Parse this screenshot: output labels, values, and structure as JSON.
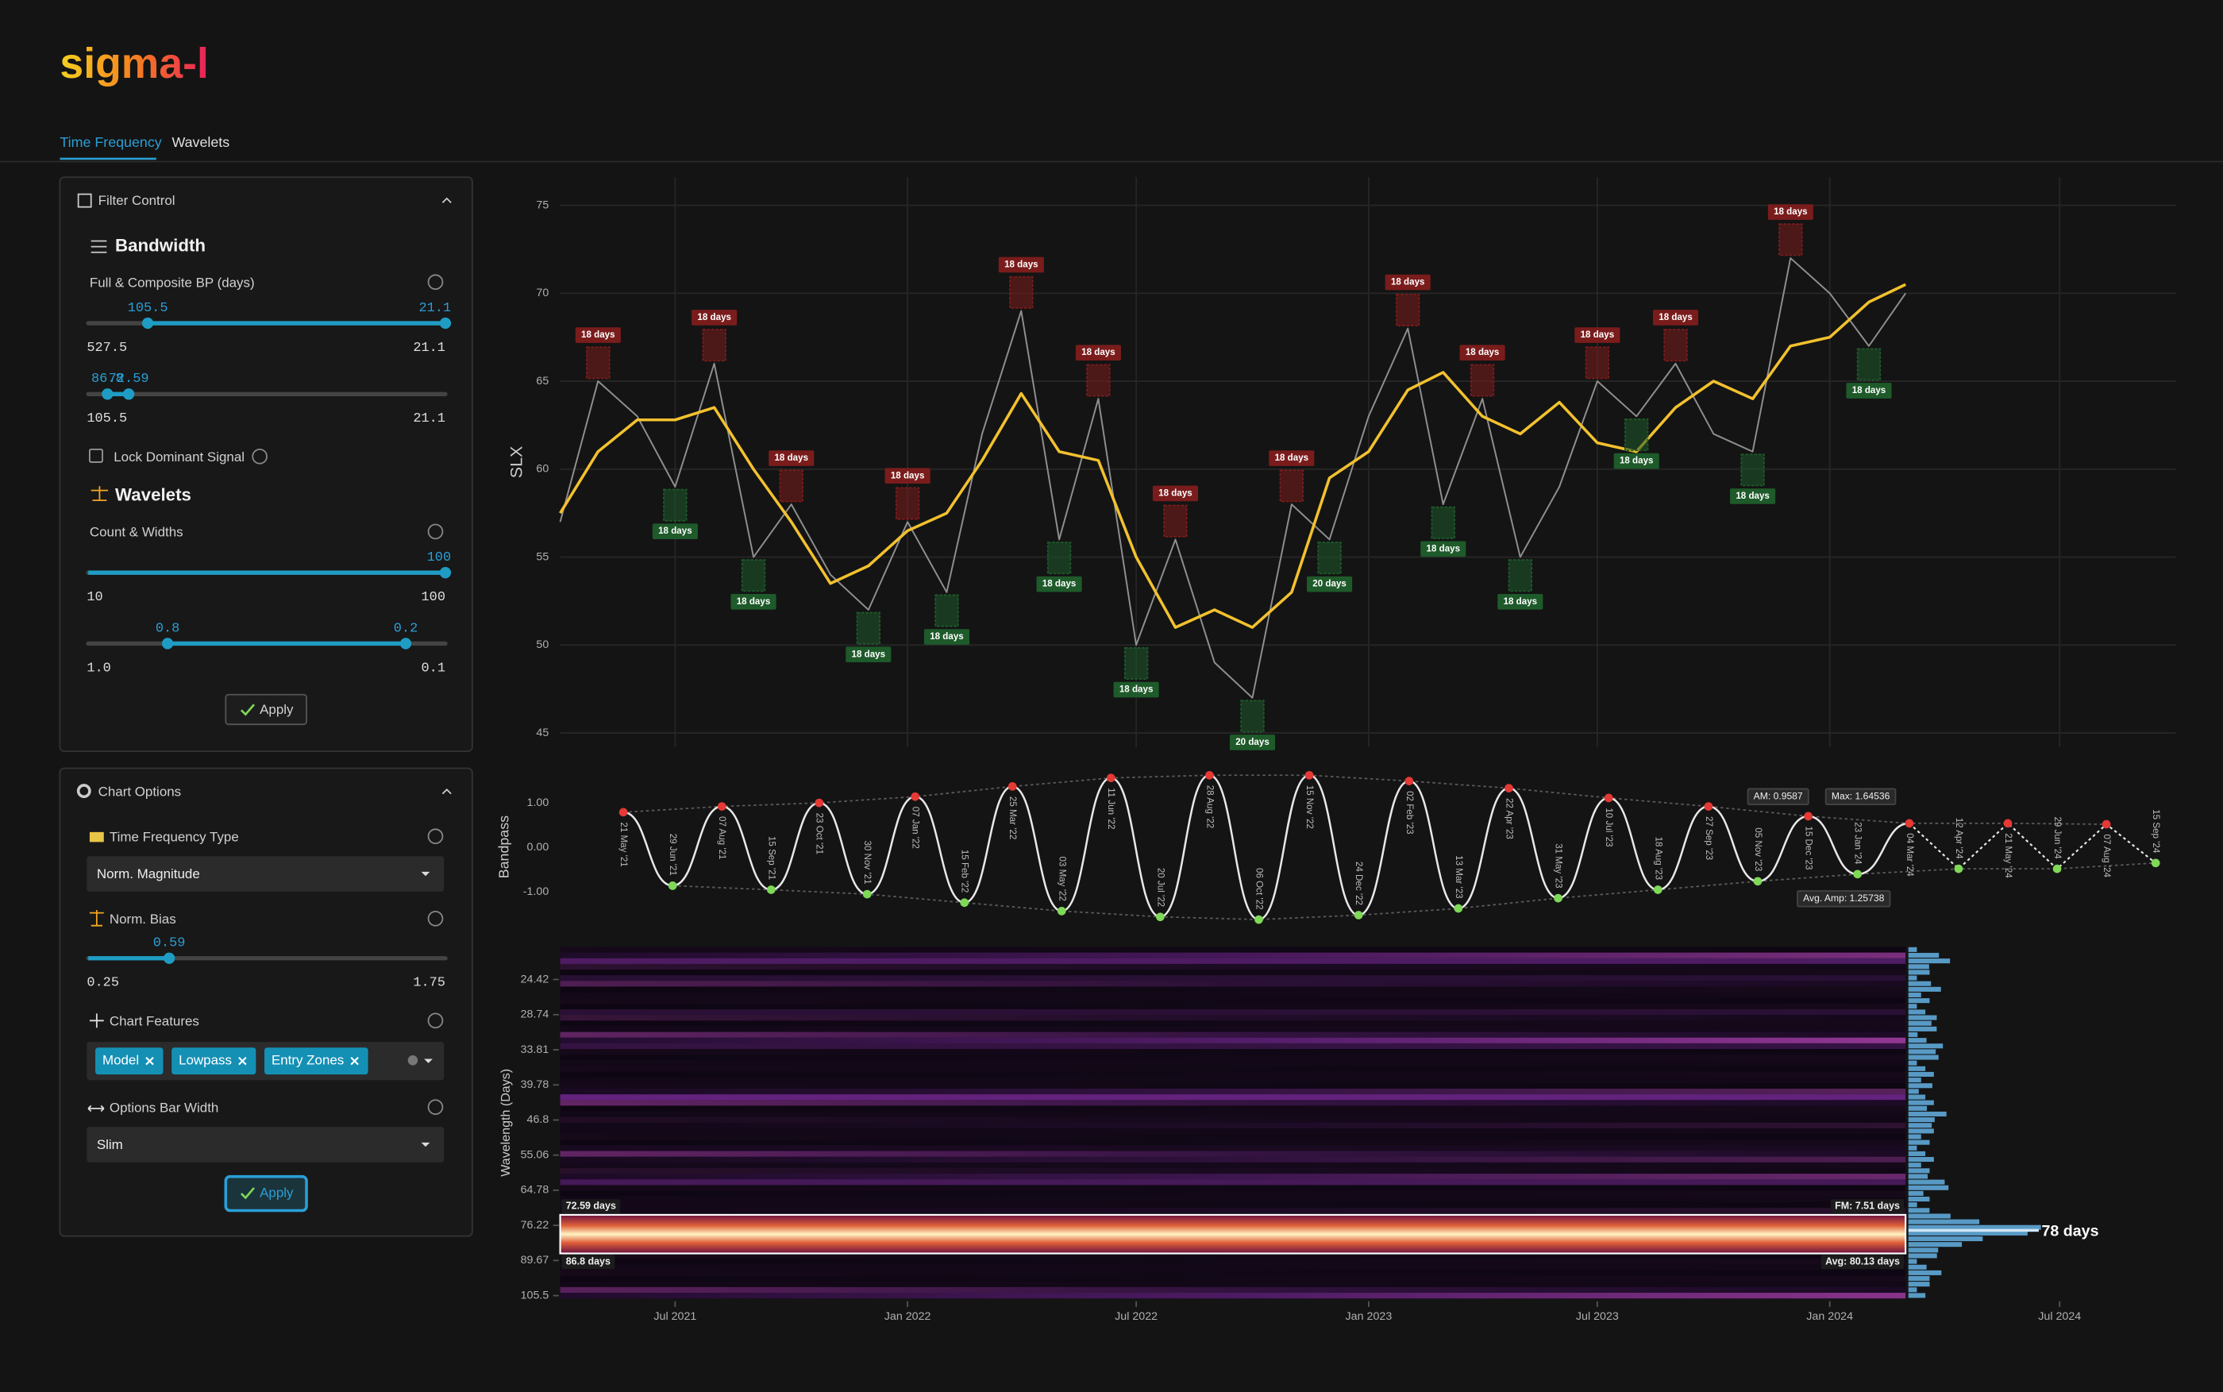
{
  "app": {
    "logo": "sigma-l",
    "tabs": [
      "Time Frequency",
      "Wavelets"
    ]
  },
  "filter_control": {
    "title": "Filter Control",
    "bandwidth_heading": "Bandwidth",
    "bp_label": "Full & Composite BP (days)",
    "sliders": [
      {
        "scale": "reciprocal",
        "ends": [
          527.5,
          21.1
        ],
        "values": [
          105.5,
          21.1
        ]
      },
      {
        "scale": "reciprocal",
        "ends": [
          105.5,
          21.1
        ],
        "values": [
          86.8,
          72.59
        ]
      }
    ],
    "lock_label": "Lock Dominant Signal",
    "wavelets_heading": "Wavelets",
    "count_label": "Count & Widths",
    "wavelet_sliders": [
      {
        "scale": "linear",
        "ends": [
          10,
          100
        ],
        "values": [
          100
        ]
      },
      {
        "scale": "linear",
        "ends": [
          {
            "value": 1.0,
            "label": "1.0"
          },
          0.1
        ],
        "values": [
          0.8,
          0.2
        ]
      }
    ],
    "apply": "Apply"
  },
  "chart_options": {
    "title": "Chart Options",
    "tf_type_label": "Time Frequency Type",
    "tf_type": "Norm. Magnitude",
    "bias_label": "Norm. Bias",
    "bias_slider": {
      "scale": "linear",
      "ends": [
        0.25,
        1.75
      ],
      "values": [
        0.59
      ]
    },
    "features_label": "Chart Features",
    "features": [
      "Model",
      "Lowpass",
      "Entry Zones"
    ],
    "bar_width_label": "Options Bar Width",
    "bar_width": "Slim",
    "apply": "Apply"
  },
  "chart_data": [
    {
      "type": "line",
      "y_label": "SLX",
      "x": [
        "2021-04",
        "2021-05",
        "2021-06",
        "2021-07",
        "2021-08",
        "2021-09",
        "2021-10",
        "2021-11",
        "2021-12",
        "2022-01",
        "2022-02",
        "2022-03",
        "2022-04",
        "2022-05",
        "2022-06",
        "2022-07",
        "2022-08",
        "2022-09",
        "2022-10",
        "2022-11",
        "2022-12",
        "2023-01",
        "2023-02",
        "2023-03",
        "2023-04",
        "2023-05",
        "2023-06",
        "2023-07",
        "2023-08",
        "2023-09",
        "2023-10",
        "2023-11",
        "2023-12",
        "2024-01",
        "2024-02",
        "2024-03"
      ],
      "series": [
        {
          "color": "#8f8f8f",
          "values": [
            57,
            65,
            63,
            59,
            66,
            55,
            58,
            54,
            52,
            57,
            53,
            62,
            69,
            56,
            64,
            50,
            56,
            49,
            47,
            58,
            56,
            63,
            68,
            58,
            64,
            55,
            59,
            65,
            63,
            66,
            62,
            61,
            72,
            70,
            67,
            70
          ]
        },
        {
          "color": "#f2c12e",
          "values": [
            57.5,
            61,
            62.8,
            62.8,
            63.5,
            60,
            57,
            53.5,
            54.5,
            56.5,
            57.5,
            60.5,
            64.3,
            61,
            60.5,
            55,
            51,
            52,
            51,
            53,
            59.5,
            61,
            64.5,
            65.5,
            63,
            62,
            63.8,
            61.5,
            61,
            63.5,
            65,
            64,
            67,
            67.5,
            69.5,
            70.5
          ]
        }
      ],
      "xlim": [
        "2021-04",
        "2024-10"
      ],
      "ylim": [
        44.2,
        76.6
      ],
      "yticks": [
        45,
        50,
        55,
        60,
        65,
        70,
        75
      ],
      "grid": true,
      "zone_colors": {
        "peak": "#7a1c1c",
        "trough": "#1e5a2a"
      },
      "entry_zones": [
        {
          "x": "2021-05",
          "kind": "peak",
          "label": "18 days"
        },
        {
          "x": "2021-08",
          "kind": "peak",
          "label": "18 days"
        },
        {
          "x": "2021-10",
          "kind": "peak",
          "label": "18 days"
        },
        {
          "x": "2022-01",
          "kind": "peak",
          "label": "18 days"
        },
        {
          "x": "2022-04",
          "kind": "peak",
          "label": "18 days"
        },
        {
          "x": "2022-06",
          "kind": "peak",
          "label": "18 days"
        },
        {
          "x": "2022-08",
          "kind": "peak",
          "label": "18 days"
        },
        {
          "x": "2022-11",
          "kind": "peak",
          "label": "18 days"
        },
        {
          "x": "2023-02",
          "kind": "peak",
          "label": "18 days"
        },
        {
          "x": "2023-04",
          "kind": "peak",
          "label": "18 days"
        },
        {
          "x": "2023-07",
          "kind": "peak",
          "label": "18 days"
        },
        {
          "x": "2023-09",
          "kind": "peak",
          "label": "18 days"
        },
        {
          "x": "2023-12",
          "kind": "peak",
          "label": "18 days"
        },
        {
          "x": "2021-07",
          "kind": "trough",
          "label": "18 days"
        },
        {
          "x": "2021-09",
          "kind": "trough",
          "label": "18 days"
        },
        {
          "x": "2021-12",
          "kind": "trough",
          "label": "18 days"
        },
        {
          "x": "2022-02",
          "kind": "trough",
          "label": "18 days"
        },
        {
          "x": "2022-05",
          "kind": "trough",
          "label": "18 days"
        },
        {
          "x": "2022-07",
          "kind": "trough",
          "label": "18 days"
        },
        {
          "x": "2022-10",
          "kind": "trough",
          "label": "20 days"
        },
        {
          "x": "2022-12",
          "kind": "trough",
          "label": "20 days"
        },
        {
          "x": "2023-03",
          "kind": "trough",
          "label": "18 days"
        },
        {
          "x": "2023-05",
          "kind": "trough",
          "label": "18 days"
        },
        {
          "x": "2023-08",
          "kind": "trough",
          "label": "18 days"
        },
        {
          "x": "2023-11",
          "kind": "trough",
          "label": "18 days"
        },
        {
          "x": "2024-02",
          "kind": "trough",
          "label": "18 days"
        }
      ]
    },
    {
      "type": "oscillator",
      "y_label": "Bandpass",
      "x": [
        "2021-05-21",
        "2021-06-29",
        "2021-08-07",
        "2021-09-15",
        "2021-10-23",
        "2021-11-30",
        "2022-01-07",
        "2022-02-15",
        "2022-03-25",
        "2022-05-03",
        "2022-06-11",
        "2022-07-20",
        "2022-08-28",
        "2022-10-06",
        "2022-11-15",
        "2022-12-24",
        "2023-02-02",
        "2023-03-13",
        "2023-04-22",
        "2023-05-31",
        "2023-07-10",
        "2023-08-18",
        "2023-09-27",
        "2023-11-05",
        "2023-12-15",
        "2024-01-23",
        "2024-03-04",
        "2024-04-12",
        "2024-05-21",
        "2024-06-29",
        "2024-08-07",
        "2024-09-15"
      ],
      "point_labels": [
        "21 May '21",
        "29 Jun '21",
        "07 Aug '21",
        "15 Sep '21",
        "23 Oct '21",
        "30 Nov '21",
        "07 Jan '22",
        "15 Feb '22",
        "25 Mar '22",
        "03 May '22",
        "11 Jun '22",
        "20 Jul '22",
        "28 Aug '22",
        "06 Oct '22",
        "15 Nov '22",
        "24 Dec '22",
        "02 Feb '23",
        "13 Mar '23",
        "22 Apr '23",
        "31 May '23",
        "10 Jul '23",
        "18 Aug '23",
        "27 Sep '23",
        "05 Nov '23",
        "15 Dec '23",
        "23 Jan '24",
        "04 Mar '24",
        "12 Apr '24",
        "21 May '24",
        "29 Jun '24",
        "07 Aug '24",
        "15 Sep '24"
      ],
      "values": [
        0.79,
        -0.86,
        0.92,
        -0.95,
        1.0,
        -1.05,
        1.14,
        -1.24,
        1.37,
        -1.43,
        1.56,
        -1.56,
        1.62,
        -1.62,
        1.62,
        -1.52,
        1.49,
        -1.37,
        1.33,
        -1.14,
        1.11,
        -0.95,
        0.92,
        -0.76,
        0.7,
        -0.6,
        0.54,
        -0.48,
        0.54,
        -0.48,
        0.52,
        -0.35
      ],
      "peak_color": "#e53935",
      "trough_color": "#7ed957",
      "xlim": [
        "2021-04",
        "2024-10"
      ],
      "ylim": [
        -1.82,
        1.84
      ],
      "yticks": [
        {
          "value": 1,
          "label": "1.00"
        },
        {
          "value": 0,
          "label": "0.00"
        },
        {
          "value": -1,
          "label": "-1.00"
        }
      ],
      "annotations": [
        "AM: 0.9587",
        "Max: 1.64536",
        "Avg. Amp: 1.25738"
      ]
    },
    {
      "type": "heatmap",
      "y_label": "Wavelength (Days)",
      "yscale": "log",
      "ylim": [
        21,
        106.9
      ],
      "yticks": [
        24.42,
        28.74,
        33.81,
        39.78,
        46.8,
        55.06,
        64.78,
        76.22,
        89.67,
        105.5
      ],
      "xlim": [
        "2021-04",
        "2024-10"
      ],
      "xticks": [
        {
          "value": "2021-07",
          "label": "Jul 2021"
        },
        {
          "value": "2022-01",
          "label": "Jan 2022"
        },
        {
          "value": "2022-07",
          "label": "Jul 2022"
        },
        {
          "value": "2023-01",
          "label": "Jan 2023"
        },
        {
          "value": "2023-07",
          "label": "Jul 2023"
        },
        {
          "value": "2024-01",
          "label": "Jan 2024"
        },
        {
          "value": "2024-07",
          "label": "Jul 2024"
        }
      ],
      "band": {
        "values": [
          72.59,
          86.8
        ],
        "value_labels": [
          "72.59 days",
          "86.8 days"
        ]
      },
      "fm_label": "FM: 7.51 days",
      "avg_label": "Avg: 80.13 days",
      "peak": {
        "value": 78,
        "value_label": "78 days"
      }
    }
  ]
}
